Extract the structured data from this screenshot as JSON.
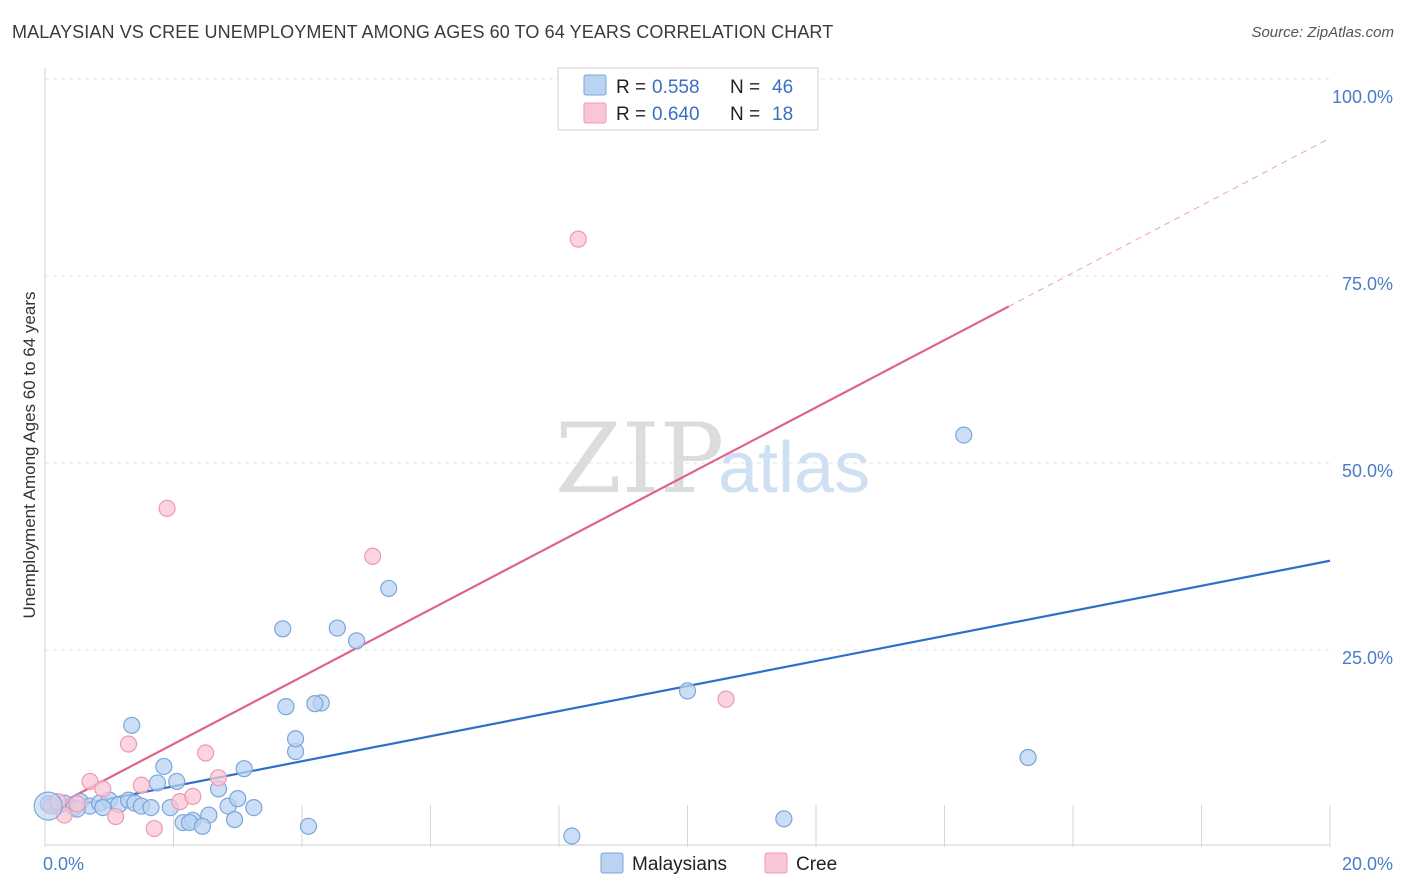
{
  "header": {
    "title": "MALAYSIAN VS CREE UNEMPLOYMENT AMONG AGES 60 TO 64 YEARS CORRELATION CHART",
    "source": "Source: ZipAtlas.com"
  },
  "watermark": {
    "zip": "ZIP",
    "atlas": "atlas"
  },
  "chart_data": {
    "type": "scatter",
    "title": "MALAYSIAN VS CREE UNEMPLOYMENT AMONG AGES 60 TO 64 YEARS CORRELATION CHART",
    "xlabel": "",
    "ylabel": "Unemployment Among Ages 60 to 64 years",
    "xlim": [
      0,
      20
    ],
    "ylim": [
      0,
      100
    ],
    "x_tick_labels": [
      "0.0%",
      "20.0%"
    ],
    "y_ticks": [
      25,
      50,
      75,
      100
    ],
    "y_tick_labels": [
      "25.0%",
      "50.0%",
      "75.0%",
      "100.0%"
    ],
    "legend_position": "top-center",
    "colors": {
      "malaysians_fill": "#b9d3f1",
      "malaysians_stroke": "#7aa6dc",
      "malaysians_line": "#2f6fc9",
      "cree_fill": "#f9c6d5",
      "cree_stroke": "#ec9ab3",
      "cree_line": "#e0628c",
      "grid": "#e3e3e3",
      "tick": "#4a7cc7"
    },
    "legend": [
      {
        "r_label": "R =",
        "r_value": "0.558",
        "n_label": "N =",
        "n_value": "46"
      },
      {
        "r_label": "R =",
        "r_value": "0.640",
        "n_label": "N =",
        "n_value": "18"
      }
    ],
    "bottom_legend": [
      "Malaysians",
      "Cree"
    ],
    "series": [
      {
        "name": "Malaysians",
        "trend": {
          "x": [
            0,
            20
          ],
          "y": [
            4.5,
            38
          ]
        },
        "points": [
          [
            0.05,
            5.5
          ],
          [
            0.2,
            5.2
          ],
          [
            0.3,
            5.6
          ],
          [
            0.45,
            5.0
          ],
          [
            0.55,
            5.8
          ],
          [
            0.7,
            5.2
          ],
          [
            0.85,
            5.6
          ],
          [
            1.0,
            6.0
          ],
          [
            1.15,
            5.4
          ],
          [
            1.3,
            6.0
          ],
          [
            1.4,
            5.6
          ],
          [
            1.5,
            5.2
          ],
          [
            1.65,
            5.0
          ],
          [
            1.75,
            8.3
          ],
          [
            1.85,
            10.5
          ],
          [
            2.05,
            8.5
          ],
          [
            2.15,
            3.0
          ],
          [
            2.3,
            3.3
          ],
          [
            2.55,
            4.0
          ],
          [
            2.7,
            7.5
          ],
          [
            2.85,
            5.2
          ],
          [
            3.0,
            6.2
          ],
          [
            3.1,
            10.2
          ],
          [
            3.25,
            5.0
          ],
          [
            3.75,
            18.5
          ],
          [
            3.9,
            12.5
          ],
          [
            3.9,
            14.2
          ],
          [
            4.1,
            2.5
          ],
          [
            4.3,
            19.0
          ],
          [
            4.55,
            29.0
          ],
          [
            4.85,
            27.3
          ],
          [
            5.35,
            34.3
          ],
          [
            1.35,
            16.0
          ],
          [
            3.7,
            28.9
          ],
          [
            2.25,
            3.0
          ],
          [
            1.95,
            5.0
          ],
          [
            2.95,
            3.4
          ],
          [
            4.2,
            18.9
          ],
          [
            10.0,
            20.6
          ],
          [
            11.5,
            3.5
          ],
          [
            14.3,
            54.8
          ],
          [
            15.3,
            11.7
          ],
          [
            8.2,
            1.2
          ],
          [
            0.9,
            5.0
          ],
          [
            2.45,
            2.5
          ],
          [
            0.5,
            4.8
          ]
        ]
      },
      {
        "name": "Cree",
        "trend": {
          "x": [
            0,
            15
          ],
          "y": [
            4.5,
            72
          ]
        },
        "points": [
          [
            0.1,
            5.2
          ],
          [
            0.3,
            4.0
          ],
          [
            0.5,
            5.5
          ],
          [
            0.7,
            8.5
          ],
          [
            0.9,
            7.5
          ],
          [
            1.1,
            3.8
          ],
          [
            1.3,
            13.5
          ],
          [
            1.5,
            8.0
          ],
          [
            1.7,
            2.2
          ],
          [
            1.9,
            45.0
          ],
          [
            2.1,
            5.8
          ],
          [
            2.3,
            6.5
          ],
          [
            2.5,
            12.3
          ],
          [
            2.7,
            9.0
          ],
          [
            5.1,
            38.6
          ],
          [
            8.3,
            81.0
          ],
          [
            10.6,
            19.5
          ],
          [
            0.2,
            5.8
          ]
        ]
      }
    ]
  }
}
